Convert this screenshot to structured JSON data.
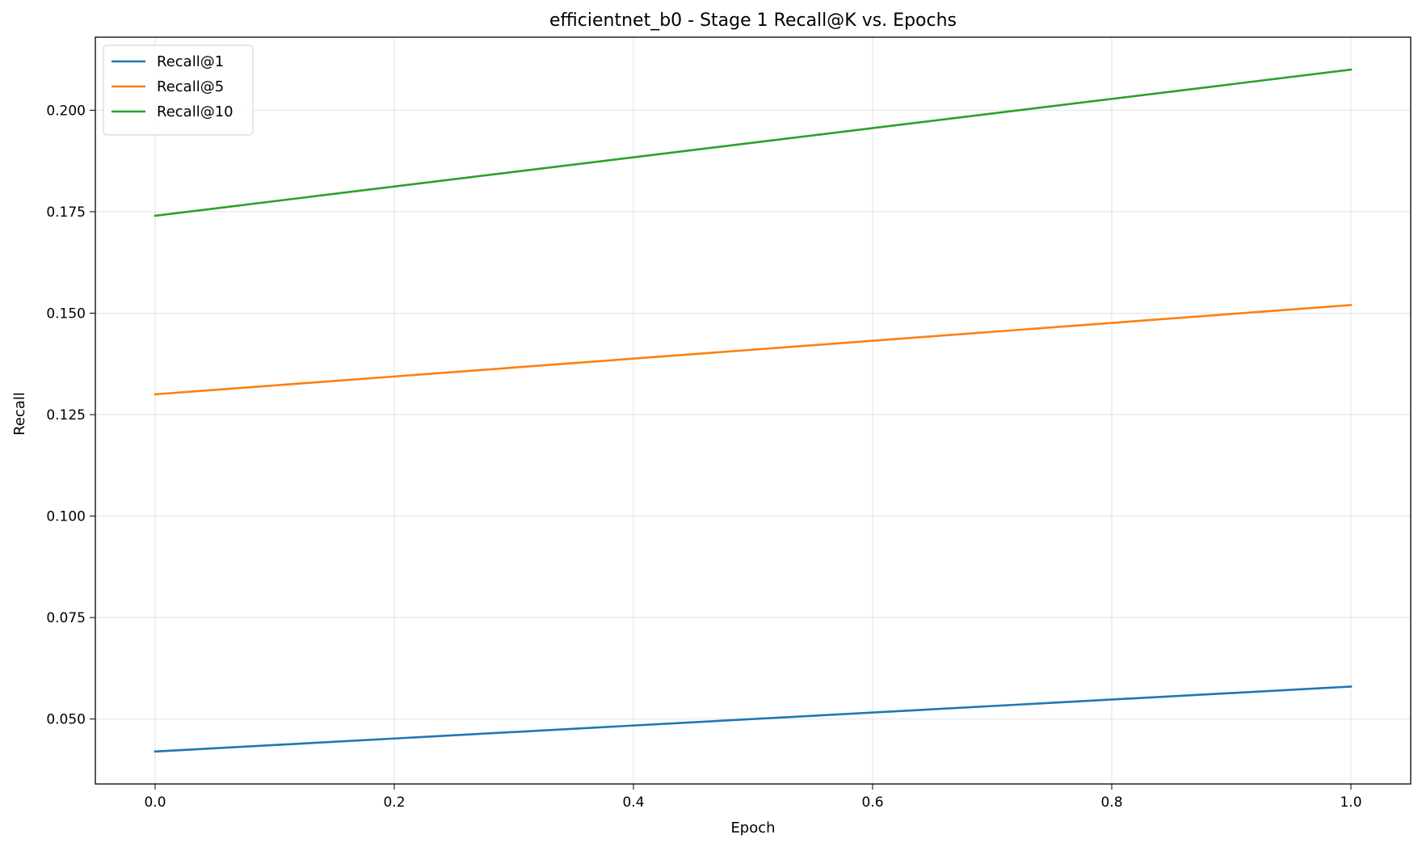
{
  "chart_data": {
    "type": "line",
    "title": "efficientnet_b0 - Stage 1 Recall@K vs. Epochs",
    "xlabel": "Epoch",
    "ylabel": "Recall",
    "xlim": [
      -0.05,
      1.05
    ],
    "ylim": [
      0.034,
      0.218
    ],
    "xticks": [
      0.0,
      0.2,
      0.4,
      0.6,
      0.8,
      1.0
    ],
    "xtick_labels": [
      "0.0",
      "0.2",
      "0.4",
      "0.6",
      "0.8",
      "1.0"
    ],
    "yticks": [
      0.05,
      0.075,
      0.1,
      0.125,
      0.15,
      0.175,
      0.2
    ],
    "ytick_labels": [
      "0.050",
      "0.075",
      "0.100",
      "0.125",
      "0.150",
      "0.175",
      "0.200"
    ],
    "grid": true,
    "legend_position": "top-left",
    "x": [
      0,
      1
    ],
    "series": [
      {
        "name": "Recall@1",
        "values": [
          0.042,
          0.058
        ],
        "color": "#1f77b4"
      },
      {
        "name": "Recall@5",
        "values": [
          0.13,
          0.152
        ],
        "color": "#ff7f0e"
      },
      {
        "name": "Recall@10",
        "values": [
          0.174,
          0.21
        ],
        "color": "#2ca02c"
      }
    ]
  }
}
